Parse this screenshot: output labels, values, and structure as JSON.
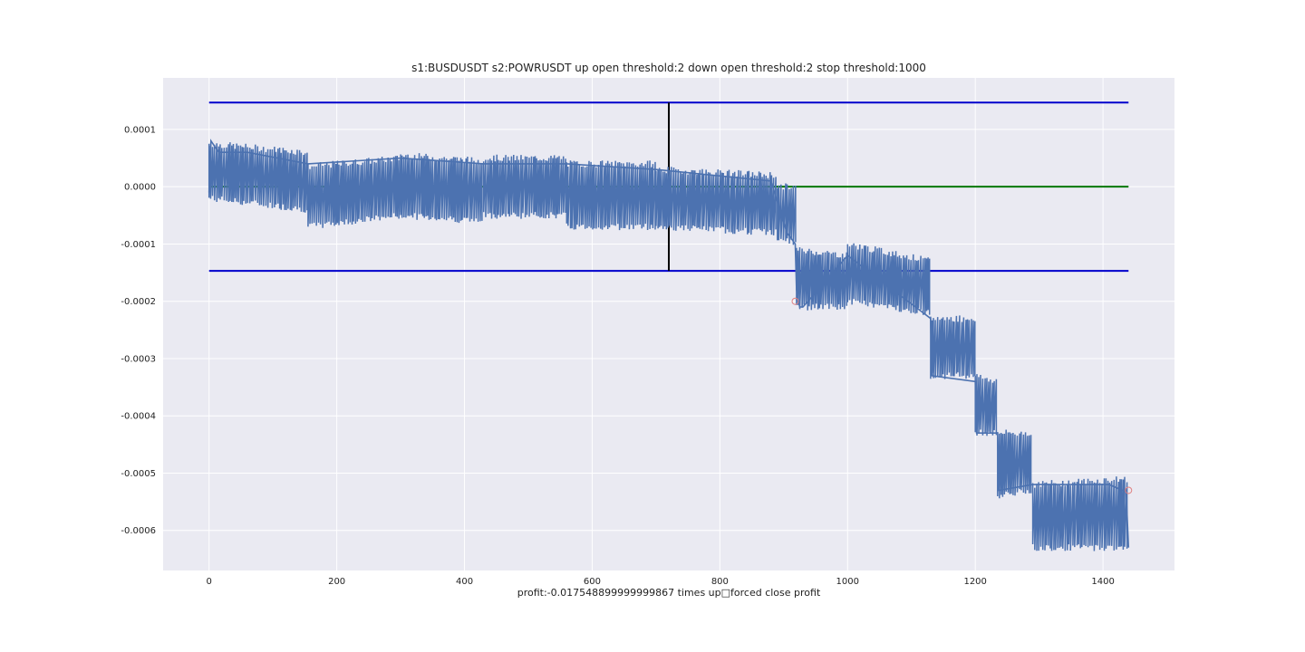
{
  "chart_data": {
    "type": "line",
    "title": "s1:BUSDUSDT s2:POWRUSDT up open threshold:2 down open threshold:2 stop threshold:1000",
    "xlabel": "profit:-0.017548899999999867 times up□forced close profit",
    "ylabel": "",
    "xlim": [
      -72,
      1512
    ],
    "ylim": [
      -0.00067,
      0.00019
    ],
    "grid": true,
    "background": "#eaeaf2",
    "x_ticks": [
      0,
      200,
      400,
      600,
      800,
      1000,
      1200,
      1400
    ],
    "x_tick_labels": [
      "0",
      "200",
      "400",
      "600",
      "800",
      "1000",
      "1200",
      "1400"
    ],
    "y_ticks": [
      0.0001,
      0.0,
      -0.0001,
      -0.0002,
      -0.0003,
      -0.0004,
      -0.0005,
      -0.0006
    ],
    "y_tick_labels": [
      "0.0001",
      "0.0000",
      "-0.0001",
      "-0.0002",
      "-0.0003",
      "-0.0004",
      "-0.0005",
      "-0.0006"
    ],
    "colors": {
      "series": "#4c72b0",
      "threshold": "#0000cc",
      "mean": "#007700",
      "marker_line": "#000000",
      "close_marker": "#e08080"
    },
    "segments": [
      {
        "x0": 0,
        "x1": 155,
        "hi_start": 7.5e-05,
        "hi_end": 6e-05,
        "lo_start": -2e-05,
        "lo_end": -4e-05
      },
      {
        "x0": 155,
        "x1": 300,
        "hi_start": 3.5e-05,
        "hi_end": 5e-05,
        "lo_start": -7e-05,
        "lo_end": -5e-05
      },
      {
        "x0": 300,
        "x1": 430,
        "hi_start": 5.5e-05,
        "hi_end": 4.5e-05,
        "lo_start": -5e-05,
        "lo_end": -6e-05
      },
      {
        "x0": 430,
        "x1": 560,
        "hi_start": 5e-05,
        "hi_end": 5e-05,
        "lo_start": -5e-05,
        "lo_end": -5e-05
      },
      {
        "x0": 560,
        "x1": 700,
        "hi_start": 4e-05,
        "hi_end": 4e-05,
        "lo_start": -7e-05,
        "lo_end": -7e-05
      },
      {
        "x0": 700,
        "x1": 890,
        "hi_start": 3e-05,
        "hi_end": 2e-05,
        "lo_start": -7e-05,
        "lo_end": -8e-05
      },
      {
        "x0": 890,
        "x1": 920,
        "hi_start": 0.0,
        "hi_end": 0.0,
        "lo_start": -9e-05,
        "lo_end": -0.0001
      },
      {
        "x0": 920,
        "x1": 1000,
        "hi_start": -0.00011,
        "hi_end": -0.00012,
        "lo_start": -0.00021,
        "lo_end": -0.00021
      },
      {
        "x0": 1000,
        "x1": 1130,
        "hi_start": -0.0001,
        "hi_end": -0.00013,
        "lo_start": -0.0002,
        "lo_end": -0.00022
      },
      {
        "x0": 1130,
        "x1": 1200,
        "hi_start": -0.00023,
        "hi_end": -0.00023,
        "lo_start": -0.00033,
        "lo_end": -0.00033
      },
      {
        "x0": 1200,
        "x1": 1235,
        "hi_start": -0.00033,
        "hi_end": -0.00034,
        "lo_start": -0.00043,
        "lo_end": -0.00043
      },
      {
        "x0": 1235,
        "x1": 1290,
        "hi_start": -0.00043,
        "hi_end": -0.00043,
        "lo_start": -0.00054,
        "lo_end": -0.00053
      },
      {
        "x0": 1290,
        "x1": 1440,
        "hi_start": -0.00052,
        "hi_end": -0.00051,
        "lo_start": -0.00063,
        "lo_end": -0.00063
      }
    ],
    "series": [
      {
        "points": [
          [
            0,
            -1e-05
          ],
          [
            3,
            8e-05
          ],
          [
            15,
            6e-05
          ],
          [
            60,
            6e-05
          ],
          [
            155,
            4e-05
          ],
          [
            300,
            5e-05
          ],
          [
            430,
            4e-05
          ],
          [
            560,
            4e-05
          ],
          [
            700,
            3e-05
          ],
          [
            880,
            1e-05
          ],
          [
            905,
            -8e-05
          ],
          [
            918,
            -0.0001
          ],
          [
            920,
            -0.00018
          ],
          [
            925,
            -0.00021
          ],
          [
            930,
            -0.00021
          ],
          [
            1000,
            -0.00012
          ],
          [
            1130,
            -0.00023
          ],
          [
            1132,
            -0.00033
          ],
          [
            1200,
            -0.00034
          ],
          [
            1202,
            -0.00043
          ],
          [
            1235,
            -0.00043
          ],
          [
            1237,
            -0.00053
          ],
          [
            1290,
            -0.00052
          ],
          [
            1410,
            -0.00052
          ],
          [
            1430,
            -0.00053
          ],
          [
            1436,
            -0.00053
          ],
          [
            1440,
            -0.00063
          ]
        ]
      }
    ],
    "reference_lines": [
      {
        "label": "",
        "y": 0.000147,
        "x_start": 0,
        "x_end": 1440,
        "color": "#0000cc"
      },
      {
        "label": "",
        "y": 0.0,
        "x_start": 0,
        "x_end": 1440,
        "color": "#007700"
      },
      {
        "label": "",
        "y": -0.000147,
        "x_start": 0,
        "x_end": 1440,
        "color": "#0000cc"
      }
    ],
    "vertical_line": {
      "x": 720,
      "y_top": 0.000147,
      "y_bottom": -0.000147
    },
    "close_markers": [
      {
        "x": 918,
        "y": -0.0002
      },
      {
        "x": 1440,
        "y": -0.00053
      }
    ]
  }
}
